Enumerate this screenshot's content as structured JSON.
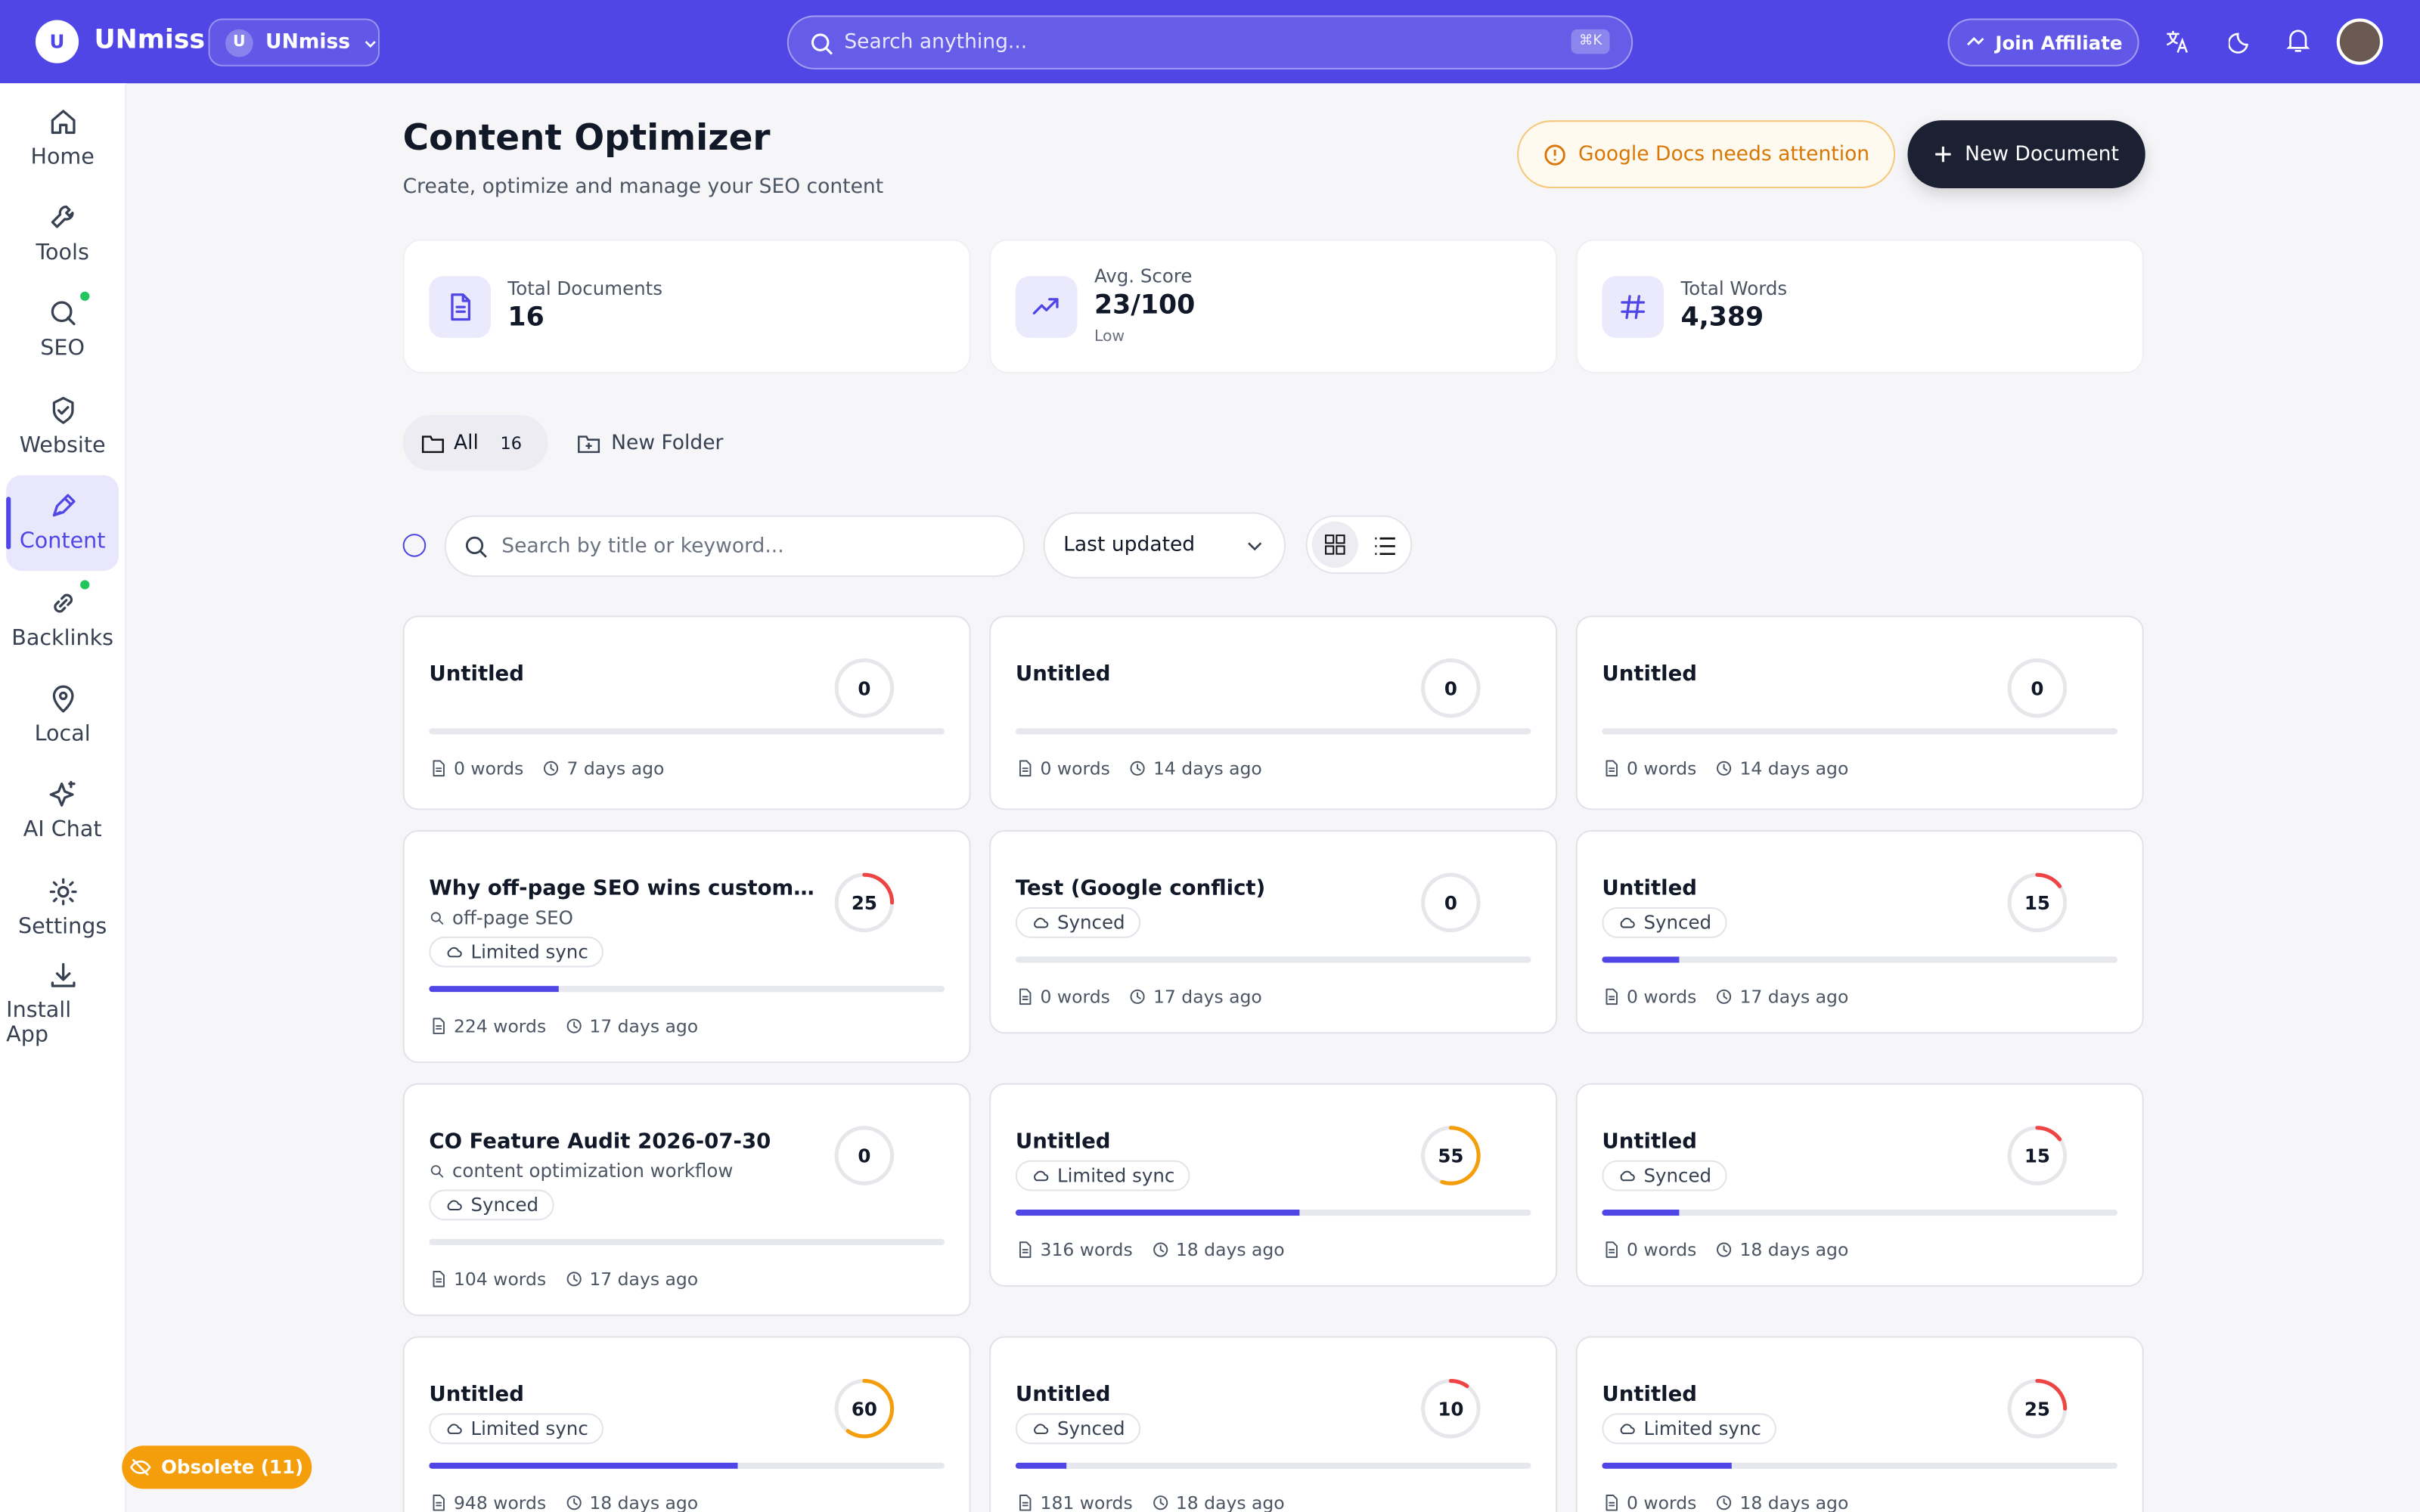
{
  "topbar": {
    "brand": "UNmiss",
    "logo": "U",
    "workspace_initial": "U",
    "workspace": "UNmiss",
    "search_placeholder": "Search anything...",
    "shortcut": "⌘K",
    "affiliate": "Join Affiliate"
  },
  "sidebar": [
    {
      "label": "Home"
    },
    {
      "label": "Tools"
    },
    {
      "label": "SEO",
      "dot": true
    },
    {
      "label": "Website"
    },
    {
      "label": "Content",
      "active": true
    },
    {
      "label": "Backlinks",
      "dot": true
    },
    {
      "label": "Local"
    },
    {
      "label": "AI Chat"
    },
    {
      "label": "Settings"
    },
    {
      "label": "Install App"
    }
  ],
  "header": {
    "title": "Content Optimizer",
    "subtitle": "Create, optimize and manage your SEO content",
    "alert": "Google Docs needs attention",
    "new_button": "New Document"
  },
  "stats": [
    {
      "label": "Total Documents",
      "value": "16"
    },
    {
      "label": "Avg. Score",
      "value": "23/100",
      "note": "Low"
    },
    {
      "label": "Total Words",
      "value": "4,389"
    }
  ],
  "folders": {
    "all": "All",
    "all_count": "16",
    "new_folder": "New Folder"
  },
  "toolbar": {
    "search_placeholder": "Search by title or keyword...",
    "sort": "Last updated"
  },
  "documents": [
    {
      "title": "Untitled",
      "score": 0,
      "words": "0 words",
      "updated": "7 days ago"
    },
    {
      "title": "Untitled",
      "score": 0,
      "words": "0 words",
      "updated": "14 days ago"
    },
    {
      "title": "Untitled",
      "score": 0,
      "words": "0 words",
      "updated": "14 days ago"
    },
    {
      "title": "Why off-page SEO wins customers in...",
      "keyword": "off-page SEO",
      "sync": "Limited sync",
      "score": 25,
      "words": "224 words",
      "updated": "17 days ago"
    },
    {
      "title": "Test (Google conflict)",
      "sync": "Synced",
      "score": 0,
      "words": "0 words",
      "updated": "17 days ago"
    },
    {
      "title": "Untitled",
      "sync": "Synced",
      "score": 15,
      "words": "0 words",
      "updated": "17 days ago"
    },
    {
      "title": "CO Feature Audit 2026-07-30",
      "keyword": "content optimization workflow",
      "sync": "Synced",
      "score": 0,
      "words": "104 words",
      "updated": "17 days ago"
    },
    {
      "title": "Untitled",
      "sync": "Limited sync",
      "score": 55,
      "words": "316 words",
      "updated": "18 days ago"
    },
    {
      "title": "Untitled",
      "sync": "Synced",
      "score": 15,
      "words": "0 words",
      "updated": "18 days ago"
    },
    {
      "title": "Untitled",
      "sync": "Limited sync",
      "score": 60,
      "words": "948 words",
      "updated": "18 days ago"
    },
    {
      "title": "Untitled",
      "sync": "Synced",
      "score": 10,
      "words": "181 words",
      "updated": "18 days ago"
    },
    {
      "title": "Untitled",
      "sync": "Limited sync",
      "score": 25,
      "words": "0 words",
      "updated": "18 days ago"
    }
  ],
  "obsolete": "Obsolete (11)"
}
